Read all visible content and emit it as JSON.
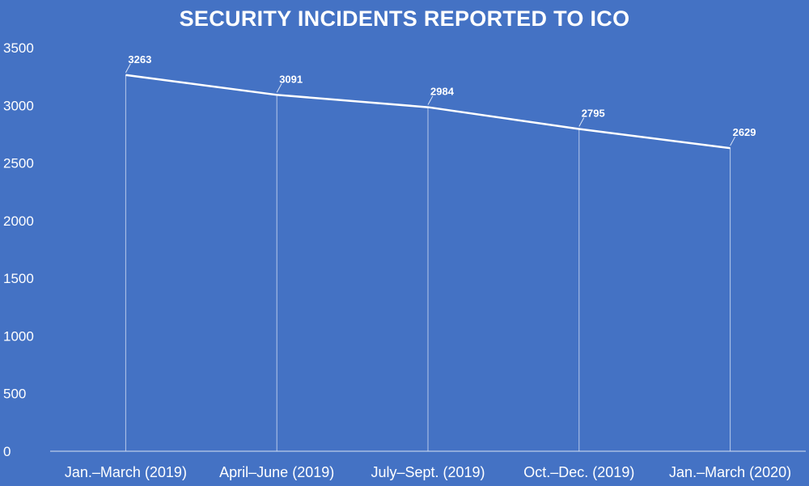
{
  "chart_data": {
    "type": "line",
    "title": "SECURITY INCIDENTS REPORTED TO ICO",
    "categories": [
      "Jan.–March (2019)",
      "April–June (2019)",
      "July–Sept. (2019)",
      "Oct.–Dec. (2019)",
      "Jan.–March (2020)"
    ],
    "values": [
      3263,
      3091,
      2984,
      2795,
      2629
    ],
    "ylim": [
      0,
      3500
    ],
    "yticks": [
      0,
      500,
      1000,
      1500,
      2000,
      2500,
      3000,
      3500
    ],
    "grid": false,
    "drop_lines": true,
    "data_labels": true,
    "legend": "none",
    "colors": {
      "background": "#4472c4",
      "line": "#ffffff",
      "text": "#ffffff"
    }
  }
}
